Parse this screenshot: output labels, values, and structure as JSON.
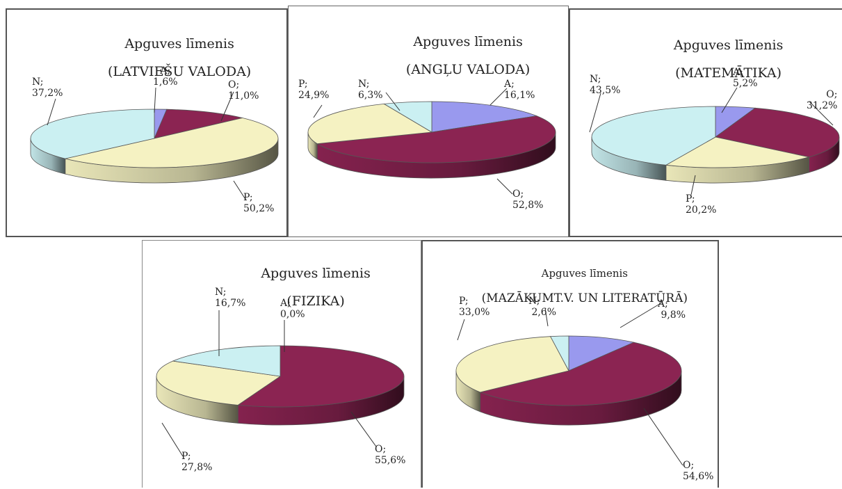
{
  "chart_data": [
    {
      "type": "pie",
      "title": "Apguves līmenis",
      "subtitle": "(LATVIEŠU VALODA)",
      "slices": [
        {
          "category": "A",
          "value": 1.6,
          "label_name": "A;",
          "label_value": "1,6%",
          "color": "#9999ee"
        },
        {
          "category": "O",
          "value": 11.0,
          "label_name": "O;",
          "label_value": "11,0%",
          "color": "#8b2452"
        },
        {
          "category": "P",
          "value": 50.2,
          "label_name": "P;",
          "label_value": "50,2%",
          "color": "#f5f2c2"
        },
        {
          "category": "N",
          "value": 37.2,
          "label_name": "N;",
          "label_value": "37,2%",
          "color": "#cbf0f2"
        }
      ]
    },
    {
      "type": "pie",
      "title": "Apguves līmenis",
      "subtitle": "(ANGĻU VALODA)",
      "slices": [
        {
          "category": "A",
          "value": 16.1,
          "label_name": "A;",
          "label_value": "16,1%",
          "color": "#9999ee"
        },
        {
          "category": "O",
          "value": 52.8,
          "label_name": "O;",
          "label_value": "52,8%",
          "color": "#8b2452"
        },
        {
          "category": "P",
          "value": 24.9,
          "label_name": "P;",
          "label_value": "24,9%",
          "color": "#f5f2c2"
        },
        {
          "category": "N",
          "value": 6.3,
          "label_name": "N;",
          "label_value": "6,3%",
          "color": "#cbf0f2"
        }
      ]
    },
    {
      "type": "pie",
      "title": "Apguves līmenis",
      "subtitle": "(MATEMĀTIKA)",
      "slices": [
        {
          "category": "A",
          "value": 5.2,
          "label_name": "A;",
          "label_value": "5,2%",
          "color": "#9999ee"
        },
        {
          "category": "O",
          "value": 31.2,
          "label_name": "O;",
          "label_value": "31,2%",
          "color": "#8b2452"
        },
        {
          "category": "P",
          "value": 20.2,
          "label_name": "P;",
          "label_value": "20,2%",
          "color": "#f5f2c2"
        },
        {
          "category": "N",
          "value": 43.5,
          "label_name": "N;",
          "label_value": "43,5%",
          "color": "#cbf0f2"
        }
      ]
    },
    {
      "type": "pie",
      "title": "Apguves līmenis",
      "subtitle": "(FIZIKA)",
      "slices": [
        {
          "category": "A",
          "value": 0.0,
          "label_name": "A;",
          "label_value": "0,0%",
          "color": "#9999ee"
        },
        {
          "category": "O",
          "value": 55.6,
          "label_name": "O;",
          "label_value": "55,6%",
          "color": "#8b2452"
        },
        {
          "category": "P",
          "value": 27.8,
          "label_name": "P;",
          "label_value": "27,8%",
          "color": "#f5f2c2"
        },
        {
          "category": "N",
          "value": 16.7,
          "label_name": "N;",
          "label_value": "16,7%",
          "color": "#cbf0f2"
        }
      ]
    },
    {
      "type": "pie",
      "title": "Apguves līmenis",
      "subtitle": "(MAZĀKUMT.V. UN LITERATŪRĀ)",
      "slices": [
        {
          "category": "A",
          "value": 9.8,
          "label_name": "A;",
          "label_value": "9,8%",
          "color": "#9999ee"
        },
        {
          "category": "O",
          "value": 54.6,
          "label_name": "O;",
          "label_value": "54,6%",
          "color": "#8b2452"
        },
        {
          "category": "P",
          "value": 33.0,
          "label_name": "P;",
          "label_value": "33,0%",
          "color": "#f5f2c2"
        },
        {
          "category": "N",
          "value": 2.6,
          "label_name": "N;",
          "label_value": "2,6%",
          "color": "#cbf0f2"
        }
      ]
    }
  ]
}
